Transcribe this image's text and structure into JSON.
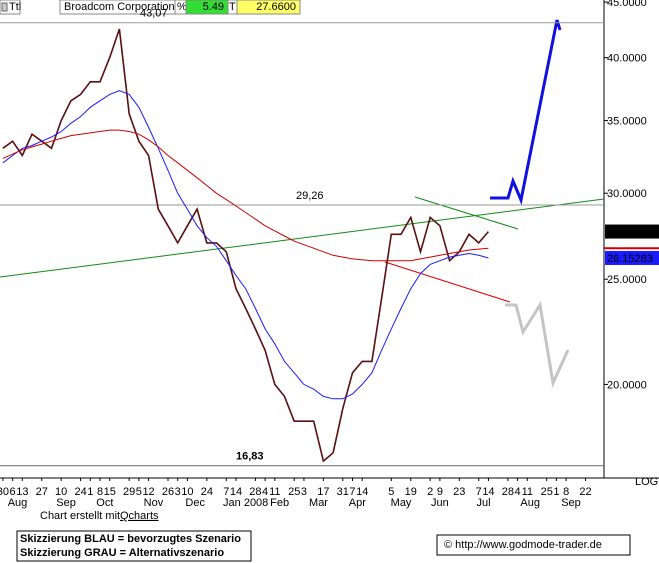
{
  "header": {
    "symbol": "Ttl",
    "company": "Broadcom Corporation",
    "pct_label": "%",
    "pct": "5.49",
    "t_label": "T",
    "last": "27.6600"
  },
  "chart_data": {
    "type": "line",
    "log_scale": true,
    "x": [
      0,
      1,
      2,
      3,
      4,
      5,
      6,
      7,
      8,
      9,
      10,
      11,
      12,
      13,
      14,
      15,
      16,
      17,
      18,
      19,
      20,
      21,
      22,
      23,
      24,
      25,
      26,
      27,
      28,
      29,
      30,
      31,
      32,
      33,
      34,
      35,
      36,
      37,
      38,
      39,
      40,
      41,
      42,
      43,
      44,
      45,
      46,
      47,
      48,
      49,
      50
    ],
    "series": [
      {
        "name": "Broadcom Corporation",
        "color": "#5a1010",
        "values": [
          33,
          33.5,
          32.5,
          34,
          33.5,
          33,
          35,
          36.5,
          37,
          38,
          38,
          40,
          42.5,
          35.5,
          33.5,
          32.5,
          29,
          28,
          27,
          28,
          29,
          27,
          27,
          26.5,
          24.5,
          23.5,
          22.5,
          21.5,
          20,
          19.5,
          18.5,
          18.5,
          18.5,
          17,
          17.3,
          19,
          20.5,
          21,
          21,
          24,
          27.5,
          27.5,
          28.5,
          26.5,
          28.5,
          28,
          26,
          26.5,
          27.5,
          27,
          27.66
        ]
      },
      {
        "color": "#1a1aff",
        "values": [
          32,
          32.5,
          33,
          33.2,
          33.5,
          33.8,
          34.2,
          34.8,
          35.3,
          36,
          36.5,
          37,
          37.3,
          37,
          36,
          34.5,
          33,
          31.5,
          30,
          29,
          28,
          27.3,
          26.8,
          26,
          25.2,
          24.5,
          23.5,
          22.5,
          21.8,
          21,
          20.5,
          20,
          19.8,
          19.5,
          19.4,
          19.4,
          19.6,
          20,
          20.5,
          21.5,
          22.5,
          23.5,
          24.5,
          25.3,
          25.8,
          26,
          26.2,
          26.3,
          26.4,
          26.3,
          26.15283
        ]
      },
      {
        "color": "#d00000",
        "values": [
          32.3,
          32.6,
          32.9,
          33.1,
          33.3,
          33.5,
          33.7,
          33.9,
          34,
          34.1,
          34.2,
          34.3,
          34.3,
          34.2,
          34,
          33.6,
          33.1,
          32.5,
          32,
          31.5,
          31,
          30.5,
          30,
          29.6,
          29.2,
          28.8,
          28.4,
          28,
          27.7,
          27.4,
          27.1,
          26.9,
          26.7,
          26.5,
          26.3,
          26.2,
          26.1,
          26.05,
          26,
          26,
          26,
          26,
          26,
          26.1,
          26.2,
          26.3,
          26.4,
          26.5,
          26.6,
          26.65,
          26.7
        ]
      }
    ],
    "ylim": [
      16.4,
      45.2
    ],
    "yticks": [
      {
        "value": 20,
        "label": "20.0000"
      },
      {
        "value": 25,
        "label": "25.0000"
      },
      {
        "value": 30,
        "label": "30.0000"
      },
      {
        "value": 35,
        "label": "35.0000"
      },
      {
        "value": 40,
        "label": "40.0000"
      },
      {
        "value": 45,
        "label": "45.0000"
      }
    ],
    "xlim": [
      -0.3,
      61.9
    ],
    "xticks": [
      {
        "value": 0,
        "label": "30"
      },
      {
        "value": 1,
        "label": "6"
      },
      {
        "value": 2,
        "label": "13"
      },
      {
        "value": 4,
        "label": "27"
      },
      {
        "value": 6,
        "label": "10"
      },
      {
        "value": 8,
        "label": "24"
      },
      {
        "value": 9,
        "label": "1"
      },
      {
        "value": 10,
        "label": "8"
      },
      {
        "value": 11,
        "label": "15"
      },
      {
        "value": 13,
        "label": "29"
      },
      {
        "value": 14,
        "label": "5"
      },
      {
        "value": 15,
        "label": "12"
      },
      {
        "value": 17,
        "label": "26"
      },
      {
        "value": 18,
        "label": "3"
      },
      {
        "value": 19,
        "label": "10"
      },
      {
        "value": 21,
        "label": "24"
      },
      {
        "value": 23,
        "label": "7"
      },
      {
        "value": 24,
        "label": "14"
      },
      {
        "value": 26,
        "label": "28"
      },
      {
        "value": 27,
        "label": "4"
      },
      {
        "value": 28,
        "label": "11"
      },
      {
        "value": 30,
        "label": "25"
      },
      {
        "value": 31,
        "label": "3"
      },
      {
        "value": 33,
        "label": "17"
      },
      {
        "value": 35,
        "label": "31"
      },
      {
        "value": 36,
        "label": "7"
      },
      {
        "value": 37,
        "label": "14"
      },
      {
        "value": 40,
        "label": "5"
      },
      {
        "value": 42,
        "label": "19"
      },
      {
        "value": 44,
        "label": "2"
      },
      {
        "value": 45,
        "label": "9"
      },
      {
        "value": 47,
        "label": "23"
      },
      {
        "value": 49,
        "label": "7"
      },
      {
        "value": 50,
        "label": "14"
      },
      {
        "value": 52,
        "label": "28"
      },
      {
        "value": 53,
        "label": "4"
      },
      {
        "value": 54,
        "label": "11"
      },
      {
        "value": 56,
        "label": "25"
      },
      {
        "value": 57,
        "label": "1"
      },
      {
        "value": 58,
        "label": "8"
      },
      {
        "value": 60,
        "label": "22"
      }
    ],
    "month_labels": [
      {
        "value": 1.5,
        "label": "Aug"
      },
      {
        "value": 6.5,
        "label": "Sep"
      },
      {
        "value": 10.5,
        "label": "Oct"
      },
      {
        "value": 15.5,
        "label": "Nov"
      },
      {
        "value": 19.8,
        "label": "Dec"
      },
      {
        "value": 25,
        "label": "Jan 2008"
      },
      {
        "value": 28.5,
        "label": "Feb"
      },
      {
        "value": 32.5,
        "label": "Mar"
      },
      {
        "value": 36.5,
        "label": "Apr"
      },
      {
        "value": 41,
        "label": "May"
      },
      {
        "value": 45,
        "label": "Jun"
      },
      {
        "value": 49.5,
        "label": "Jul"
      },
      {
        "value": 54.3,
        "label": "Aug"
      },
      {
        "value": 58.5,
        "label": "Sep"
      }
    ],
    "annotations": [
      {
        "value": 43.07,
        "label": "43,07"
      },
      {
        "value": 29.26,
        "label": "29,26"
      },
      {
        "value": 16.83,
        "label": "16,83"
      }
    ],
    "price_labels": [
      {
        "value": 27.66,
        "label": "27.6600"
      },
      {
        "value": 26.15283,
        "label": "26.15283"
      }
    ],
    "scale_label": "LOG"
  },
  "footer": {
    "credit": "Chart erstellt mit ",
    "credit_link": "Qcharts",
    "note1": "Skizzierung BLAU = bevorzugtes Szenario",
    "note2": "Skizzierung GRAU = Alternativszenario",
    "url": "© http://www.godmode-trader.de"
  }
}
